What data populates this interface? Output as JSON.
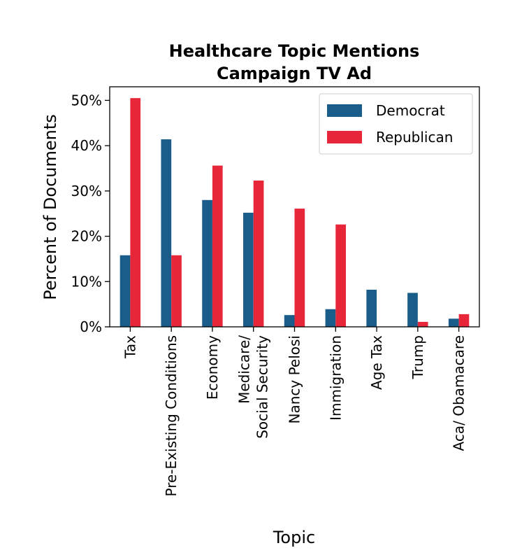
{
  "chart_data": {
    "type": "bar",
    "title": [
      "Healthcare Topic Mentions",
      "Campaign TV Ad"
    ],
    "xlabel": "Topic",
    "ylabel": "Percent of Documents",
    "ylim": [
      0,
      53
    ],
    "yticks": [
      0,
      10,
      20,
      30,
      40,
      50
    ],
    "ytick_labels": [
      "0%",
      "10%",
      "20%",
      "30%",
      "40%",
      "50%"
    ],
    "categories": [
      [
        "Tax"
      ],
      [
        "Pre-Existing Conditions"
      ],
      [
        "Economy"
      ],
      [
        "Medicare/",
        "Social Security"
      ],
      [
        "Nancy Pelosi"
      ],
      [
        "Immigration"
      ],
      [
        "Age Tax"
      ],
      [
        "Trump"
      ],
      [
        "Aca/ Obamacare"
      ]
    ],
    "series": [
      {
        "name": "Democrat",
        "color": "#1a5d8a",
        "values": [
          15.8,
          41.4,
          28.0,
          25.2,
          2.6,
          3.9,
          8.2,
          7.5,
          1.8
        ]
      },
      {
        "name": "Republican",
        "color": "#e8263a",
        "values": [
          50.5,
          15.8,
          35.6,
          32.3,
          26.1,
          22.6,
          0.0,
          1.1,
          2.8
        ]
      }
    ],
    "grid": false,
    "legend_position": "top-right"
  }
}
